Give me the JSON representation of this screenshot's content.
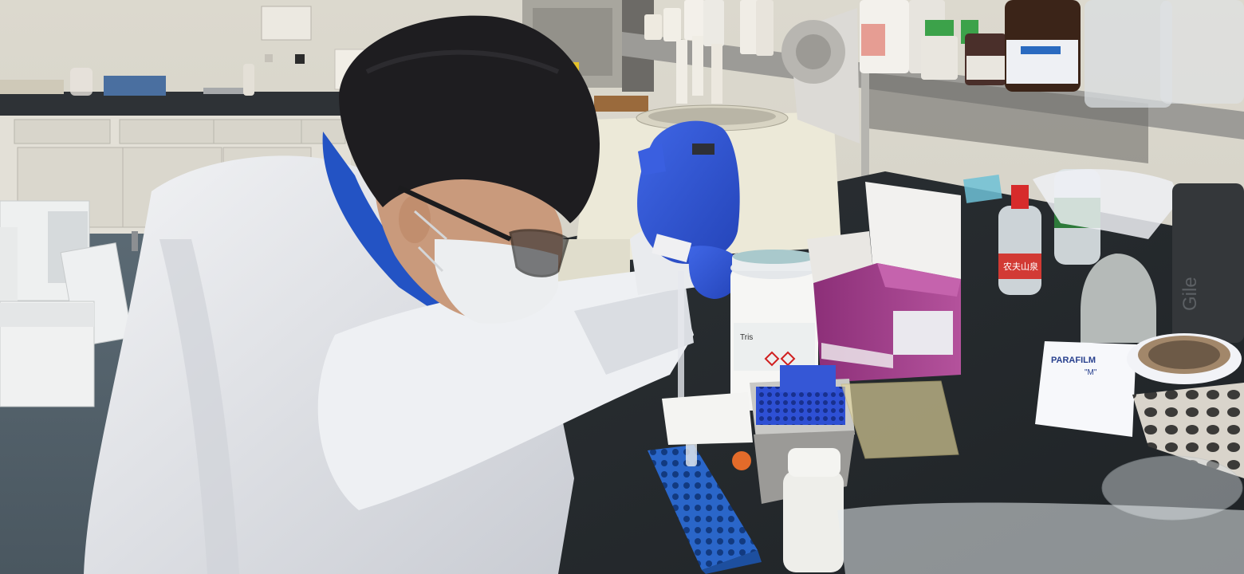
{
  "labels": {
    "jar": "Tris",
    "parafilm": "PARAFILM",
    "parafilm_m": "\"M\"",
    "water_bottle": "农夫山泉",
    "corner_text": "Gile"
  },
  "colors": {
    "wall": "#d9d6cc",
    "floor": "#55646e",
    "bench": "#2f3438",
    "coat": "#e6e7ea",
    "glove": "#2f55d6",
    "hair": "#1e1d20",
    "tube_rack": "#2a66c9",
    "pink_box": "#a2408a",
    "centrifuge": "#e9e5d3"
  },
  "icons": [
    "person",
    "pipette",
    "centrifuge",
    "tube-rack",
    "reagent-jar",
    "tip-box",
    "kit-box",
    "water-bottle",
    "parafilm-roll",
    "reagent-shelf"
  ]
}
